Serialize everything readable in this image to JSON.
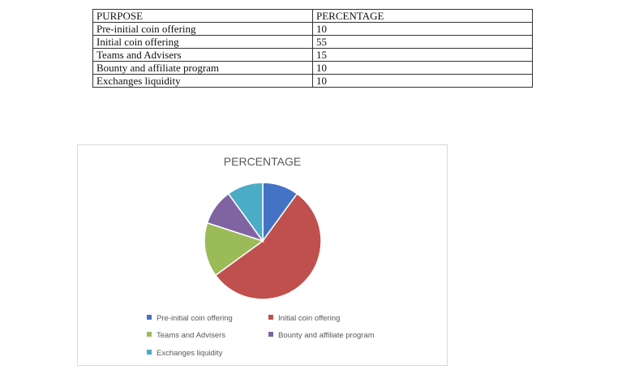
{
  "table": {
    "headers": [
      "PURPOSE",
      "PERCENTAGE"
    ],
    "rows": [
      [
        "Pre-initial coin offering",
        "10"
      ],
      [
        "Initial coin offering",
        "55"
      ],
      [
        "Teams and Advisers",
        "15"
      ],
      [
        "Bounty and affiliate program",
        "10"
      ],
      [
        "Exchanges liquidity",
        "10"
      ]
    ]
  },
  "chart_data": {
    "type": "pie",
    "title": "PERCENTAGE",
    "legend_position": "bottom",
    "categories": [
      "Pre-initial coin offering",
      "Initial coin offering",
      "Teams and Advisers",
      "Bounty and affiliate program",
      "Exchanges liquidity"
    ],
    "values": [
      10,
      55,
      15,
      10,
      10
    ],
    "colors": [
      "#4472c4",
      "#c0504d",
      "#9bbb59",
      "#8064a2",
      "#4bacc6"
    ]
  }
}
